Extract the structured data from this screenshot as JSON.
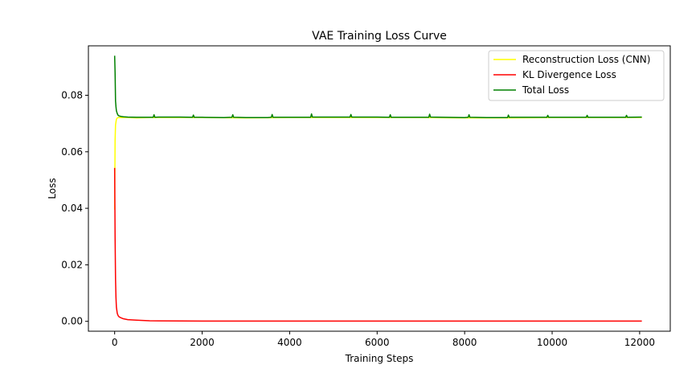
{
  "chart_data": {
    "type": "line",
    "title": "VAE Training Loss Curve",
    "xlabel": "Training Steps",
    "ylabel": "Loss",
    "xlim": [
      -600,
      12700
    ],
    "ylim": [
      -0.0035,
      0.0975
    ],
    "xticks": [
      0,
      2000,
      4000,
      6000,
      8000,
      10000,
      12000
    ],
    "yticks": [
      0.0,
      0.02,
      0.04,
      0.06,
      0.08
    ],
    "xtick_labels": [
      "0",
      "2000",
      "4000",
      "6000",
      "8000",
      "10000",
      "12000"
    ],
    "ytick_labels": [
      "0.00",
      "0.02",
      "0.04",
      "0.06",
      "0.08"
    ],
    "grid": false,
    "legend_position": "upper right",
    "series": [
      {
        "name": "Reconstruction Loss (CNN)",
        "color": "#ffff00",
        "x": [
          0,
          10,
          20,
          40,
          60,
          80,
          100,
          150,
          200,
          300,
          500,
          800,
          1000,
          2000,
          3000,
          4000,
          5000,
          6000,
          7000,
          8000,
          9000,
          10000,
          11000,
          12050
        ],
        "y": [
          0.0395,
          0.064,
          0.0695,
          0.0715,
          0.072,
          0.0721,
          0.0721,
          0.0721,
          0.0721,
          0.0721,
          0.072,
          0.0721,
          0.0721,
          0.0721,
          0.072,
          0.0721,
          0.0721,
          0.0721,
          0.0721,
          0.072,
          0.072,
          0.0721,
          0.0721,
          0.0721
        ]
      },
      {
        "name": "KL Divergence Loss",
        "color": "#ff0000",
        "x": [
          0,
          10,
          20,
          30,
          40,
          60,
          80,
          100,
          150,
          200,
          300,
          500,
          800,
          1000,
          2000,
          4000,
          6000,
          8000,
          10000,
          12050
        ],
        "y": [
          0.0543,
          0.03,
          0.015,
          0.0085,
          0.005,
          0.0028,
          0.002,
          0.0016,
          0.0012,
          0.0009,
          0.0006,
          0.0004,
          0.0002,
          0.00015,
          0.0001,
          0.0001,
          0.0001,
          0.0001,
          0.0001,
          0.0001
        ]
      },
      {
        "name": "Total Loss",
        "color": "#008000",
        "x": [
          0,
          10,
          20,
          30,
          40,
          60,
          80,
          100,
          150,
          200,
          300,
          500,
          800,
          880,
          900,
          920,
          1000,
          1500,
          1780,
          1800,
          1820,
          2000,
          2500,
          2680,
          2700,
          2720,
          3000,
          3500,
          3580,
          3600,
          3620,
          4000,
          4480,
          4500,
          4520,
          5000,
          5380,
          5400,
          5420,
          6000,
          6280,
          6300,
          6320,
          7000,
          7180,
          7200,
          7220,
          7500,
          8000,
          8080,
          8100,
          8120,
          8500,
          8980,
          9000,
          9020,
          9500,
          9880,
          9900,
          9920,
          10500,
          10780,
          10800,
          10820,
          11500,
          11680,
          11700,
          11720,
          12050
        ],
        "y": [
          0.094,
          0.088,
          0.078,
          0.076,
          0.0745,
          0.0735,
          0.0729,
          0.0727,
          0.0725,
          0.0724,
          0.0723,
          0.0722,
          0.0722,
          0.0722,
          0.0731,
          0.0722,
          0.0723,
          0.0723,
          0.0722,
          0.073,
          0.0722,
          0.0722,
          0.0721,
          0.0722,
          0.0731,
          0.0722,
          0.0721,
          0.0721,
          0.0722,
          0.0732,
          0.0722,
          0.0722,
          0.0722,
          0.0734,
          0.0723,
          0.0723,
          0.0723,
          0.0732,
          0.0723,
          0.0723,
          0.0722,
          0.0731,
          0.0722,
          0.0722,
          0.0722,
          0.0733,
          0.0723,
          0.0722,
          0.0721,
          0.0722,
          0.0731,
          0.0722,
          0.0721,
          0.0721,
          0.073,
          0.0722,
          0.0722,
          0.0722,
          0.0729,
          0.0722,
          0.0722,
          0.0722,
          0.0729,
          0.0722,
          0.0722,
          0.0722,
          0.0729,
          0.0722,
          0.0723
        ]
      }
    ]
  }
}
